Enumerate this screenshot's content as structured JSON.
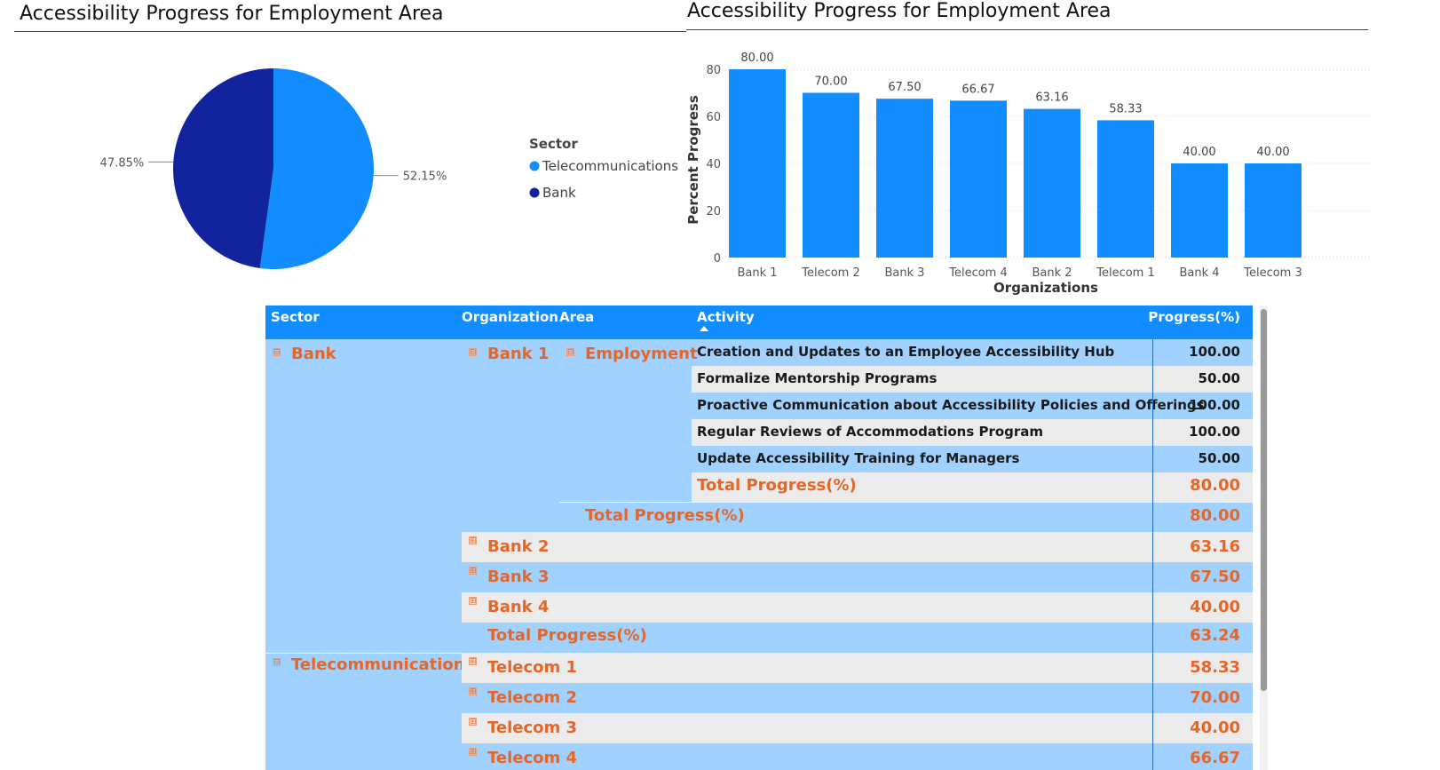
{
  "pie_chart_title": "Accessibility Progress for Employment Area",
  "bar_chart_title": "Accessibility Progress for Employment Area",
  "colors": {
    "telecom_blue": "#118DFF",
    "bank_navy": "#12239E",
    "header_blue": "#118DFF",
    "row_light_blue": "#A0D1FF",
    "row_gray": "#EBEBEB",
    "orange_text": "#E4672A"
  },
  "chart_data": [
    {
      "type": "pie",
      "legend_title": "Sector",
      "legend_position": "right",
      "slices": [
        {
          "name": "Telecommunications",
          "value": 52.15,
          "label": "52.15%",
          "color": "#118DFF"
        },
        {
          "name": "Bank",
          "value": 47.85,
          "label": "47.85%",
          "color": "#12239E"
        }
      ]
    },
    {
      "type": "bar",
      "categories": [
        "Bank 1",
        "Telecom 2",
        "Bank 3",
        "Telecom 4",
        "Bank 2",
        "Telecom 1",
        "Bank 4",
        "Telecom 3"
      ],
      "values": [
        80.0,
        70.0,
        67.5,
        66.67,
        63.16,
        58.33,
        40.0,
        40.0
      ],
      "value_labels": [
        "80.00",
        "70.00",
        "67.50",
        "66.67",
        "63.16",
        "58.33",
        "40.00",
        "40.00"
      ],
      "xlabel": "Organizations",
      "ylabel": "Percent Progress",
      "ylim": [
        0,
        80
      ],
      "yticks": [
        "0",
        "20",
        "40",
        "60",
        "80"
      ],
      "grid": true,
      "color": "#118DFF"
    }
  ],
  "matrix": {
    "headers": {
      "sector": "Sector",
      "organization": "Organization",
      "area": "Area",
      "activity": "Activity",
      "progress": "Progress(%)"
    },
    "expand_icon": "⊞",
    "collapse_icon": "⊟",
    "bank": {
      "sector": "Bank",
      "org": "Bank 1",
      "area": "Employment",
      "activities": [
        {
          "name": "Creation and Updates to an Employee Accessibility Hub",
          "value": "100.00"
        },
        {
          "name": "Formalize Mentorship Programs",
          "value": "50.00"
        },
        {
          "name": "Proactive Communication about Accessibility Policies and Offerings",
          "value": "100.00"
        },
        {
          "name": "Regular Reviews of Accommodations Program",
          "value": "100.00"
        },
        {
          "name": "Update Accessibility Training for Managers",
          "value": "50.00"
        }
      ],
      "area_total": {
        "label": "Total Progress(%)",
        "value": "80.00"
      },
      "org_total": {
        "label": "Total Progress(%)",
        "value": "80.00"
      },
      "other_orgs": [
        {
          "name": "Bank 2",
          "value": "63.16"
        },
        {
          "name": "Bank 3",
          "value": "67.50"
        },
        {
          "name": "Bank 4",
          "value": "40.00"
        }
      ],
      "sector_total": {
        "label": "Total Progress(%)",
        "value": "63.24"
      }
    },
    "telecom": {
      "sector": "Telecommunications",
      "orgs": [
        {
          "name": "Telecom 1",
          "value": "58.33"
        },
        {
          "name": "Telecom 2",
          "value": "70.00"
        },
        {
          "name": "Telecom 3",
          "value": "40.00"
        },
        {
          "name": "Telecom 4",
          "value": "66.67"
        }
      ]
    }
  }
}
